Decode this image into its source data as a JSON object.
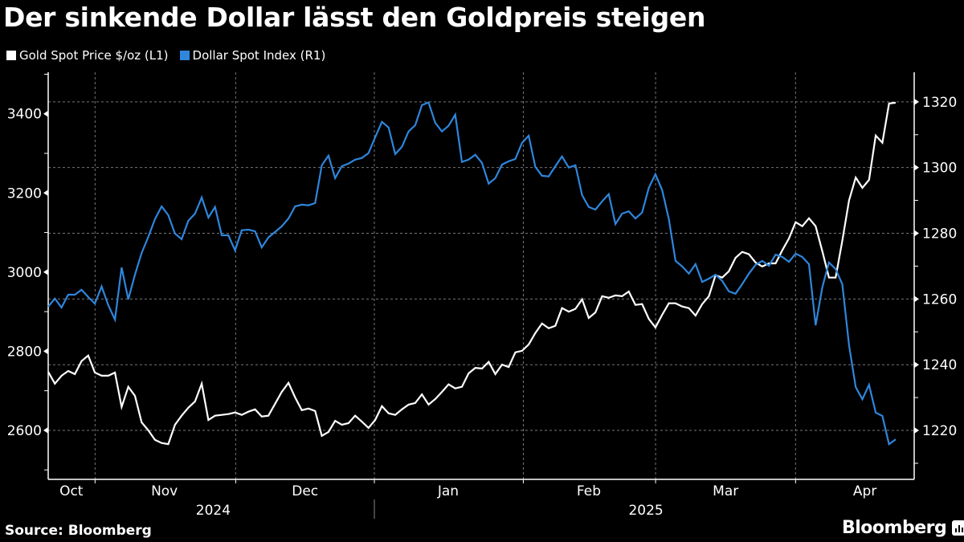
{
  "chart_data": {
    "type": "line",
    "title": "Der sinkende Dollar lässt den Goldpreis steigen",
    "source": "Source: Bloomberg",
    "brand": "Bloomberg",
    "legend_position": "top-left",
    "grid": true,
    "left_axis": {
      "label": "L1",
      "ylim": [
        2476,
        3505
      ],
      "ticks": [
        2600,
        2800,
        3000,
        3200,
        3400
      ],
      "tick_labels": [
        "2600",
        "2800",
        "3000",
        "3200",
        "3400"
      ]
    },
    "right_axis": {
      "label": "R1",
      "ylim": [
        1205.1,
        1329.0
      ],
      "ticks": [
        1220,
        1240,
        1260,
        1280,
        1300,
        1320
      ],
      "tick_labels": [
        "1220",
        "1240",
        "1260",
        "1280",
        "1300",
        "1320"
      ]
    },
    "x_axis": {
      "unit": "trading-day index",
      "xlim": [
        0,
        132
      ],
      "month_labels": [
        {
          "label": "Oct",
          "at": 3.6
        },
        {
          "label": "Nov",
          "at": 18.1
        },
        {
          "label": "Dec",
          "at": 40.0
        },
        {
          "label": "Jan",
          "at": 62.3
        },
        {
          "label": "Feb",
          "at": 84.2
        },
        {
          "label": "Mar",
          "at": 105.5
        },
        {
          "label": "Apr",
          "at": 127.2
        }
      ],
      "month_boundaries": [
        7.3,
        29.2,
        50.8,
        74.0,
        94.6,
        116.4
      ],
      "year_labels": [
        {
          "label": "2024",
          "at": 25.7
        },
        {
          "label": "2025",
          "at": 93.1
        }
      ],
      "year_boundary": 50.8
    },
    "series": [
      {
        "name": "Gold Spot Price $/oz (L1)",
        "axis": "left",
        "color": "#ffffff",
        "values": [
          2748,
          2718,
          2738,
          2750,
          2742,
          2775,
          2789,
          2746,
          2738,
          2738,
          2746,
          2659,
          2710,
          2687,
          2620,
          2600,
          2576,
          2568,
          2565,
          2614,
          2637,
          2657,
          2673,
          2718,
          2626,
          2637,
          2639,
          2641,
          2645,
          2639,
          2647,
          2653,
          2635,
          2637,
          2667,
          2697,
          2720,
          2683,
          2651,
          2655,
          2649,
          2586,
          2596,
          2624,
          2614,
          2618,
          2637,
          2622,
          2606,
          2626,
          2661,
          2643,
          2639,
          2653,
          2665,
          2669,
          2691,
          2665,
          2679,
          2697,
          2716,
          2706,
          2710,
          2744,
          2758,
          2756,
          2773,
          2742,
          2766,
          2760,
          2797,
          2801,
          2817,
          2846,
          2870,
          2858,
          2864,
          2909,
          2900,
          2907,
          2931,
          2884,
          2898,
          2939,
          2935,
          2941,
          2939,
          2951,
          2917,
          2919,
          2882,
          2860,
          2892,
          2921,
          2921,
          2913,
          2909,
          2890,
          2919,
          2939,
          2992,
          2986,
          3002,
          3036,
          3051,
          3045,
          3024,
          3014,
          3022,
          3022,
          3055,
          3085,
          3126,
          3116,
          3136,
          3116,
          3053,
          2986,
          2986,
          3079,
          3181,
          3239,
          3213,
          3233,
          3345,
          3327,
          3426,
          3428
        ]
      },
      {
        "name": "Dollar Spot Index (R1)",
        "axis": "right",
        "color": "#2f86dc",
        "values": [
          1257.7,
          1260.1,
          1257.4,
          1261.3,
          1261.3,
          1262.8,
          1260.6,
          1258.6,
          1263.8,
          1258.1,
          1253.7,
          1269.6,
          1259.9,
          1267.4,
          1274.0,
          1278.9,
          1284.3,
          1288.2,
          1285.5,
          1279.9,
          1278.2,
          1283.8,
          1286.0,
          1290.9,
          1284.8,
          1288.0,
          1279.4,
          1279.4,
          1274.8,
          1280.9,
          1281.1,
          1280.6,
          1275.7,
          1278.7,
          1280.4,
          1282.1,
          1284.5,
          1288.2,
          1288.7,
          1288.5,
          1289.2,
          1300.7,
          1303.6,
          1296.8,
          1300.4,
          1301.2,
          1302.4,
          1302.9,
          1304.4,
          1309.2,
          1313.9,
          1312.2,
          1304.1,
          1306.3,
          1311.0,
          1312.9,
          1319.0,
          1319.8,
          1313.6,
          1311.0,
          1312.7,
          1316.1,
          1301.7,
          1302.4,
          1303.9,
          1301.4,
          1295.1,
          1296.8,
          1300.9,
          1301.9,
          1302.6,
          1307.5,
          1309.7,
          1300.2,
          1297.5,
          1297.3,
          1300.4,
          1303.4,
          1300.0,
          1300.7,
          1291.6,
          1288.0,
          1287.2,
          1289.7,
          1291.9,
          1282.8,
          1286.0,
          1286.7,
          1284.5,
          1286.3,
          1293.8,
          1298.0,
          1293.1,
          1284.3,
          1271.6,
          1269.9,
          1267.7,
          1270.6,
          1265.2,
          1266.2,
          1267.4,
          1265.5,
          1262.3,
          1261.6,
          1264.5,
          1267.7,
          1270.4,
          1271.6,
          1270.1,
          1273.5,
          1272.8,
          1271.3,
          1273.8,
          1272.8,
          1270.6,
          1252.0,
          1263.5,
          1271.1,
          1269.1,
          1264.5,
          1245.9,
          1233.2,
          1229.5,
          1233.9,
          1225.4,
          1224.4,
          1215.8,
          1217.3
        ]
      }
    ]
  }
}
